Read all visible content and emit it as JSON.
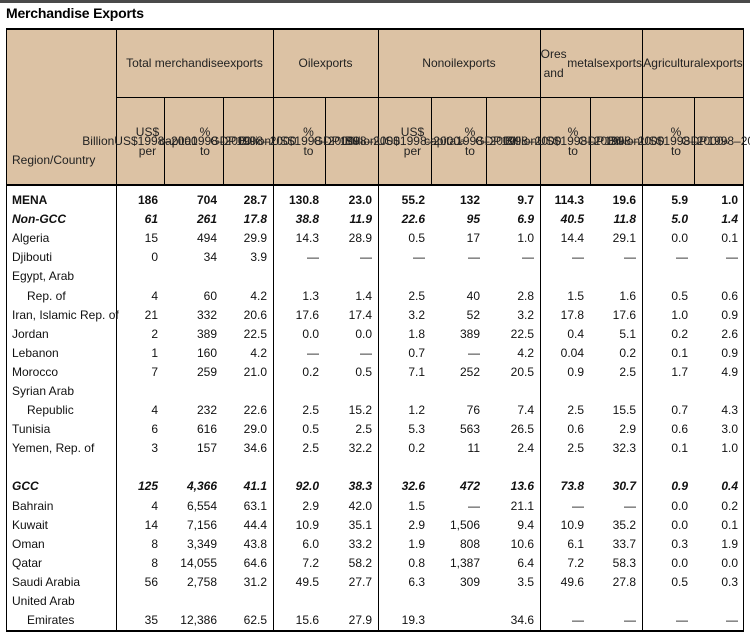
{
  "title": "Merchandise Exports",
  "header": {
    "groups": {
      "total": [
        "Total merchandise",
        "exports"
      ],
      "oil": [
        "Oil",
        "exports"
      ],
      "nonoil": [
        "Nonoil",
        "exports"
      ],
      "ores": [
        "Ores and",
        "metals",
        "exports"
      ],
      "agri": [
        "Agricultural",
        "exports"
      ]
    },
    "region": [
      "Region/",
      "Country"
    ],
    "subcols": [
      [
        "Billion",
        "US$",
        "1998–",
        "2000"
      ],
      [
        "US$ per",
        "capita",
        "1998–",
        "2000"
      ],
      [
        "% to",
        "GDP",
        "1998–",
        "2000"
      ],
      [
        "Billion",
        "US$",
        "1998–",
        "2000"
      ],
      [
        "% to",
        "GDP",
        "1998–",
        "2000"
      ],
      [
        "Billion",
        "US$",
        "1998–",
        "2000"
      ],
      [
        "US$ per",
        "capita",
        "1998–",
        "2000"
      ],
      [
        "% to",
        "GDP",
        "1998–",
        "2000"
      ],
      [
        "Billion",
        "US$",
        "1998–",
        "2000"
      ],
      [
        "% to",
        "GDP",
        "1998–",
        "2000"
      ],
      [
        "Billion",
        "US$",
        "1998–",
        "2000"
      ],
      [
        "% to",
        "GDP",
        "1998–",
        "2000"
      ]
    ],
    "superscript_a": "a"
  },
  "rows": [
    {
      "label": "MENA",
      "style": "bold",
      "values": [
        "186",
        "704",
        "28.7",
        "130.8",
        "23.0",
        "55.2",
        "132",
        "9.7",
        "114.3",
        "19.6",
        "5.9",
        "1.0"
      ]
    },
    {
      "label": "Non-GCC",
      "style": "bi",
      "values": [
        "61",
        "261",
        "17.8",
        "38.8",
        "11.9",
        "22.6",
        "95",
        "6.9",
        "40.5",
        "11.8",
        "5.0",
        "1.4"
      ]
    },
    {
      "label": "Algeria",
      "values": [
        "15",
        "494",
        "29.9",
        "14.3",
        "28.9",
        "0.5",
        "17",
        "1.0",
        "14.4",
        "29.1",
        "0.0",
        "0.1"
      ]
    },
    {
      "label": "Djibouti",
      "values": [
        "0",
        "34",
        "3.9",
        "—",
        "—",
        "—",
        "—",
        "—",
        "—",
        "—",
        "—",
        "—"
      ]
    },
    {
      "label": "Egypt, Arab",
      "values": [
        "",
        "",
        "",
        "",
        "",
        "",
        "",
        "",
        "",
        "",
        "",
        ""
      ]
    },
    {
      "label": "Rep. of",
      "indent": true,
      "values": [
        "4",
        "60",
        "4.2",
        "1.3",
        "1.4",
        "2.5",
        "40",
        "2.8",
        "1.5",
        "1.6",
        "0.5",
        "0.6"
      ]
    },
    {
      "label": "Iran, Islamic Rep. of",
      "values": [
        "21",
        "332",
        "20.6",
        "17.6",
        "17.4",
        "3.2",
        "52",
        "3.2",
        "17.8",
        "17.6",
        "1.0",
        "0.9"
      ]
    },
    {
      "label": "Jordan",
      "values": [
        "2",
        "389",
        "22.5",
        "0.0",
        "0.0",
        "1.8",
        "389",
        "22.5",
        "0.4",
        "5.1",
        "0.2",
        "2.6"
      ]
    },
    {
      "label": "Lebanon",
      "values": [
        "1",
        "160",
        "4.2",
        "—",
        "—",
        "0.7",
        "—",
        "4.2",
        "0.04",
        "0.2",
        "0.1",
        "0.9"
      ]
    },
    {
      "label": "Morocco",
      "values": [
        "7",
        "259",
        "21.0",
        "0.2",
        "0.5",
        "7.1",
        "252",
        "20.5",
        "0.9",
        "2.5",
        "1.7",
        "4.9"
      ]
    },
    {
      "label": "Syrian Arab",
      "values": [
        "",
        "",
        "",
        "",
        "",
        "",
        "",
        "",
        "",
        "",
        "",
        ""
      ]
    },
    {
      "label": "Republic",
      "indent": true,
      "values": [
        "4",
        "232",
        "22.6",
        "2.5",
        "15.2",
        "1.2",
        "76",
        "7.4",
        "2.5",
        "15.5",
        "0.7",
        "4.3"
      ]
    },
    {
      "label": "Tunisia",
      "values": [
        "6",
        "616",
        "29.0",
        "0.5",
        "2.5",
        "5.3",
        "563",
        "26.5",
        "0.6",
        "2.9",
        "0.6",
        "3.0"
      ]
    },
    {
      "label": "Yemen, Rep. of",
      "values": [
        "3",
        "157",
        "34.6",
        "2.5",
        "32.2",
        "0.2",
        "11",
        "2.4",
        "2.5",
        "32.3",
        "0.1",
        "1.0"
      ]
    },
    {
      "label": "GCC",
      "style": "bi",
      "gap": true,
      "values": [
        "125",
        "4,366",
        "41.1",
        "92.0",
        "38.3",
        "32.6",
        "472",
        "13.6",
        "73.8",
        "30.7",
        "0.9",
        "0.4"
      ]
    },
    {
      "label": "Bahrain",
      "values": [
        "4",
        "6,554",
        "63.1",
        "2.9",
        "42.0",
        "1.5",
        "—",
        "21.1",
        "—",
        "—",
        "0.0",
        "0.2"
      ]
    },
    {
      "label": "Kuwait",
      "values": [
        "14",
        "7,156",
        "44.4",
        "10.9",
        "35.1",
        "2.9",
        "1,506",
        "9.4",
        "10.9",
        "35.2",
        "0.0",
        "0.1"
      ]
    },
    {
      "label": "Oman",
      "values": [
        "8",
        "3,349",
        "43.8",
        "6.0",
        "33.2",
        "1.9",
        "808",
        "10.6",
        "6.1",
        "33.7",
        "0.3",
        "1.9"
      ]
    },
    {
      "label": "Qatar",
      "values": [
        "8",
        "14,055",
        "64.6",
        "7.2",
        "58.2",
        "0.8",
        "1,387",
        "6.4",
        "7.2",
        "58.3",
        "0.0",
        "0.0"
      ]
    },
    {
      "label": "Saudi Arabia",
      "values": [
        "56",
        "2,758",
        "31.2",
        "49.5",
        "27.7",
        "6.3",
        "309",
        "3.5",
        "49.6",
        "27.8",
        "0.5",
        "0.3"
      ]
    },
    {
      "label": "United Arab",
      "values": [
        "",
        "",
        "",
        "",
        "",
        "",
        "",
        "",
        "",
        "",
        "",
        ""
      ]
    },
    {
      "label": "Emirates",
      "indent": true,
      "values": [
        "35",
        "12,386",
        "62.5",
        "15.6",
        "27.9",
        "19.3",
        "",
        "34.6",
        "—",
        "—",
        "—",
        "—"
      ]
    }
  ]
}
